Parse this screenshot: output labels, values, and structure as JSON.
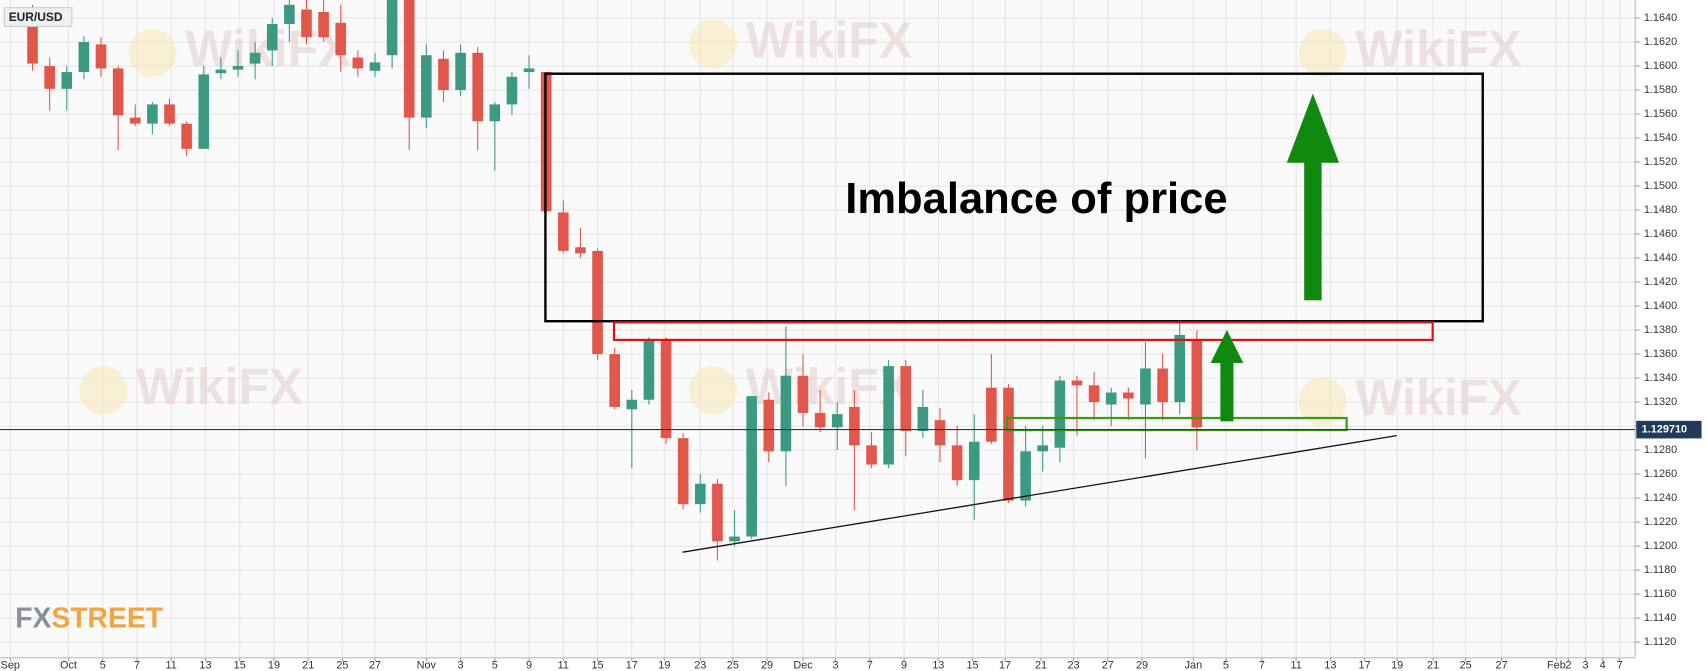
{
  "chart_data": {
    "type": "candlestick",
    "symbol": "EUR/USD",
    "annotation": "Imbalance of price",
    "watermark": "WikiFX",
    "logo": [
      "FX",
      "STREET"
    ],
    "up_color": "#3d9a82",
    "down_color": "#e2574c",
    "grid": true,
    "open": [
      1.1641,
      1.16,
      1.1581,
      1.1595,
      1.1618,
      1.1598,
      1.1557,
      1.1552,
      1.1568,
      1.1552,
      1.1531,
      1.1594,
      1.1597,
      1.1602,
      1.1613,
      1.1635,
      1.1647,
      1.1645,
      1.1636,
      1.1607,
      1.1596,
      1.1609,
      1.1655,
      1.1557,
      1.1606,
      1.158,
      1.1611,
      1.1554,
      1.1568,
      1.1595,
      1.1595,
      1.1478,
      1.1449,
      1.1446,
      1.136,
      1.1314,
      1.1322,
      1.1371,
      1.129,
      1.1235,
      1.1252,
      1.1204,
      1.1208,
      1.1322,
      1.1279,
      1.1342,
      1.1311,
      1.1299,
      1.1316,
      1.1284,
      1.1268,
      1.135,
      1.1296,
      1.1305,
      1.1284,
      1.1255,
      1.1332,
      1.1332,
      1.1238,
      1.1279,
      1.1282,
      1.1338,
      1.1334,
      1.1318,
      1.1328,
      1.1318,
      1.1348,
      1.132,
      1.1371
    ],
    "high": [
      1.1651,
      1.1607,
      1.16,
      1.1625,
      1.1624,
      1.16,
      1.1568,
      1.157,
      1.1573,
      1.1554,
      1.16,
      1.1607,
      1.1613,
      1.162,
      1.164,
      1.1655,
      1.1655,
      1.1655,
      1.1651,
      1.1613,
      1.1611,
      1.1655,
      1.1655,
      1.1618,
      1.1613,
      1.1618,
      1.1616,
      1.157,
      1.1595,
      1.1609,
      1.1595,
      1.1488,
      1.1465,
      1.1448,
      1.1365,
      1.133,
      1.1374,
      1.1374,
      1.1294,
      1.126,
      1.1256,
      1.123,
      1.1325,
      1.1328,
      1.1383,
      1.136,
      1.133,
      1.132,
      1.133,
      1.1295,
      1.1355,
      1.1355,
      1.133,
      1.1315,
      1.13,
      1.131,
      1.136,
      1.1335,
      1.13,
      1.13,
      1.1342,
      1.1342,
      1.1345,
      1.1332,
      1.1332,
      1.137,
      1.136,
      1.1386,
      1.138
    ],
    "low": [
      1.1596,
      1.1563,
      1.1563,
      1.1589,
      1.1591,
      1.153,
      1.155,
      1.1543,
      1.155,
      1.1525,
      1.1531,
      1.1589,
      1.1591,
      1.1589,
      1.16,
      1.162,
      1.1618,
      1.162,
      1.1595,
      1.1591,
      1.1591,
      1.1598,
      1.153,
      1.1548,
      1.157,
      1.1575,
      1.153,
      1.1513,
      1.1559,
      1.1581,
      1.1478,
      1.1444,
      1.144,
      1.1355,
      1.1314,
      1.1265,
      1.1318,
      1.1285,
      1.1231,
      1.1228,
      1.1188,
      1.12,
      1.1206,
      1.127,
      1.125,
      1.13,
      1.1295,
      1.128,
      1.123,
      1.1265,
      1.1265,
      1.1275,
      1.129,
      1.127,
      1.125,
      1.1222,
      1.1285,
      1.1236,
      1.1233,
      1.1262,
      1.127,
      1.1292,
      1.1305,
      1.13,
      1.1305,
      1.1273,
      1.1305,
      1.131,
      1.128
    ],
    "close": [
      1.1602,
      1.1581,
      1.1595,
      1.162,
      1.1598,
      1.1559,
      1.1552,
      1.1568,
      1.1552,
      1.1531,
      1.1593,
      1.1597,
      1.16,
      1.1611,
      1.1635,
      1.1651,
      1.1624,
      1.1624,
      1.1609,
      1.1598,
      1.1603,
      1.1655,
      1.1557,
      1.1609,
      1.158,
      1.1611,
      1.1554,
      1.1568,
      1.1591,
      1.1598,
      1.1479,
      1.1446,
      1.1444,
      1.136,
      1.1316,
      1.1322,
      1.1371,
      1.129,
      1.1235,
      1.1252,
      1.1204,
      1.1208,
      1.1325,
      1.1279,
      1.1342,
      1.1311,
      1.1299,
      1.131,
      1.1284,
      1.1268,
      1.135,
      1.1296,
      1.1316,
      1.1284,
      1.1255,
      1.1287,
      1.1287,
      1.1238,
      1.1279,
      1.1284,
      1.1338,
      1.1334,
      1.132,
      1.1328,
      1.1323,
      1.1348,
      1.132,
      1.1376,
      1.1299
    ],
    "last_price": {
      "value": 1.12971,
      "label": "1.129710"
    },
    "xlim": [
      -1.9,
      93.6
    ],
    "xticks": [
      {
        "value": -1.3,
        "label": "Sep"
      },
      {
        "value": 2.1,
        "label": "Oct"
      },
      {
        "value": 4.1,
        "label": "5"
      },
      {
        "value": 6.1,
        "label": "7"
      },
      {
        "value": 8.1,
        "label": "11"
      },
      {
        "value": 10.1,
        "label": "13"
      },
      {
        "value": 12.1,
        "label": "15"
      },
      {
        "value": 14.1,
        "label": "19"
      },
      {
        "value": 16.1,
        "label": "21"
      },
      {
        "value": 18.1,
        "label": "25"
      },
      {
        "value": 20,
        "label": "27"
      },
      {
        "value": 23,
        "label": "Nov"
      },
      {
        "value": 25,
        "label": "3"
      },
      {
        "value": 27,
        "label": "5"
      },
      {
        "value": 29,
        "label": "9"
      },
      {
        "value": 31,
        "label": "11"
      },
      {
        "value": 33,
        "label": "15"
      },
      {
        "value": 35,
        "label": "17"
      },
      {
        "value": 36.9,
        "label": "19"
      },
      {
        "value": 39,
        "label": "23"
      },
      {
        "value": 40.9,
        "label": "25"
      },
      {
        "value": 42.9,
        "label": "29"
      },
      {
        "value": 45,
        "label": "Dec"
      },
      {
        "value": 46.9,
        "label": "3"
      },
      {
        "value": 48.9,
        "label": "7"
      },
      {
        "value": 50.9,
        "label": "9"
      },
      {
        "value": 52.9,
        "label": "13"
      },
      {
        "value": 54.9,
        "label": "15"
      },
      {
        "value": 56.8,
        "label": "17"
      },
      {
        "value": 58.9,
        "label": "21"
      },
      {
        "value": 60.8,
        "label": "23"
      },
      {
        "value": 62.8,
        "label": "27"
      },
      {
        "value": 64.8,
        "label": "29"
      },
      {
        "value": 67.8,
        "label": "Jan"
      },
      {
        "value": 69.7,
        "label": "5"
      },
      {
        "value": 71.8,
        "label": "7"
      },
      {
        "value": 73.8,
        "label": "11"
      },
      {
        "value": 75.8,
        "label": "13"
      },
      {
        "value": 77.8,
        "label": "17"
      },
      {
        "value": 79.7,
        "label": "19"
      },
      {
        "value": 81.8,
        "label": "21"
      },
      {
        "value": 83.7,
        "label": "25"
      },
      {
        "value": 85.8,
        "label": "27"
      },
      {
        "value": 89,
        "label": "Feb"
      },
      {
        "value": 89.7,
        "label": "2"
      },
      {
        "value": 90.7,
        "label": "3"
      },
      {
        "value": 91.7,
        "label": "4"
      },
      {
        "value": 92.7,
        "label": "7"
      }
    ],
    "ylim": [
      1.1107,
      1.1655
    ],
    "yticks": [
      {
        "value": 1.112,
        "label": "1.1120"
      },
      {
        "value": 1.114,
        "label": "1.1140"
      },
      {
        "value": 1.116,
        "label": "1.1160"
      },
      {
        "value": 1.118,
        "label": "1.1180"
      },
      {
        "value": 1.12,
        "label": "1.1200"
      },
      {
        "value": 1.122,
        "label": "1.1220"
      },
      {
        "value": 1.124,
        "label": "1.1240"
      },
      {
        "value": 1.126,
        "label": "1.1260"
      },
      {
        "value": 1.128,
        "label": "1.1280"
      },
      {
        "value": 1.13,
        "label": "1.1300"
      },
      {
        "value": 1.132,
        "label": "1.1320"
      },
      {
        "value": 1.134,
        "label": "1.1340"
      },
      {
        "value": 1.136,
        "label": "1.1360"
      },
      {
        "value": 1.138,
        "label": "1.1380"
      },
      {
        "value": 1.14,
        "label": "1.1400"
      },
      {
        "value": 1.142,
        "label": "1.1420"
      },
      {
        "value": 1.144,
        "label": "1.1440"
      },
      {
        "value": 1.146,
        "label": "1.1460"
      },
      {
        "value": 1.148,
        "label": "1.1480"
      },
      {
        "value": 1.15,
        "label": "1.1500"
      },
      {
        "value": 1.152,
        "label": "1.1520"
      },
      {
        "value": 1.154,
        "label": "1.1540"
      },
      {
        "value": 1.156,
        "label": "1.1560"
      },
      {
        "value": 1.158,
        "label": "1.1580"
      },
      {
        "value": 1.16,
        "label": "1.1600"
      },
      {
        "value": 1.162,
        "label": "1.1620"
      },
      {
        "value": 1.164,
        "label": "1.1640"
      }
    ]
  }
}
